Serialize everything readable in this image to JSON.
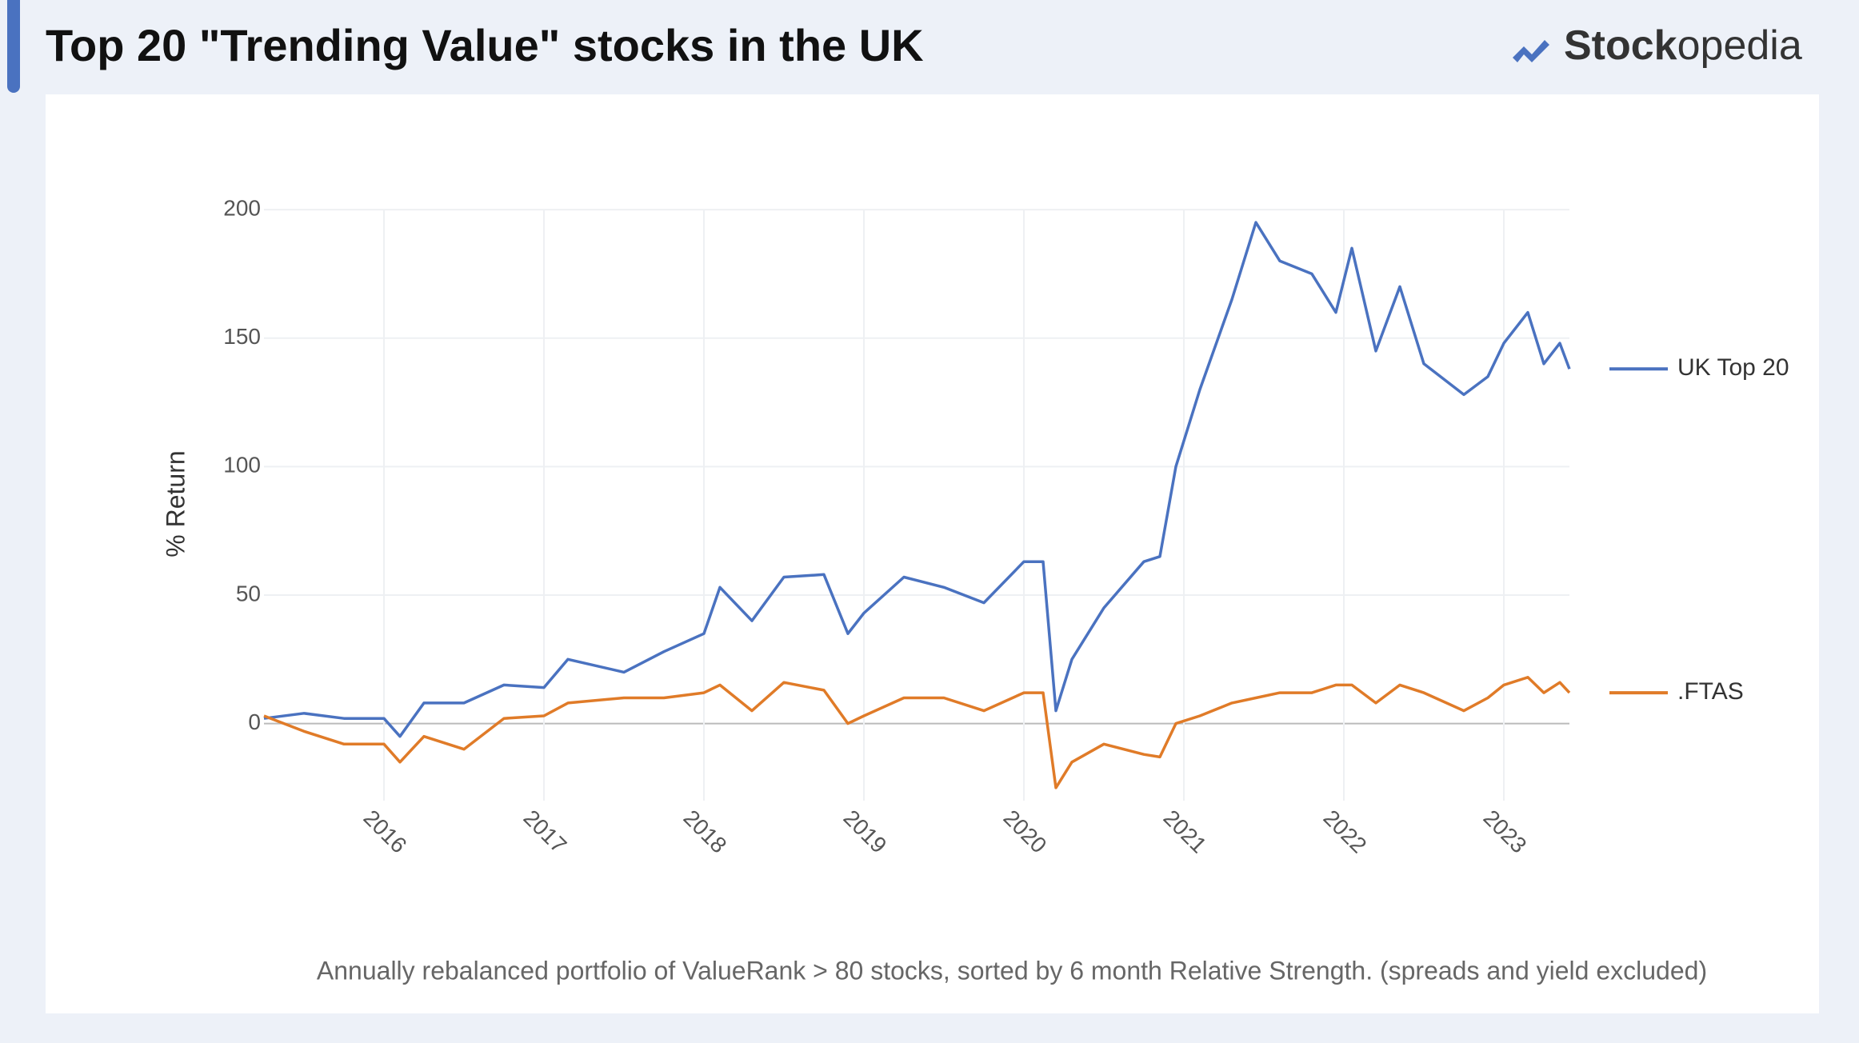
{
  "header": {
    "title": "Top 20 \"Trending Value\" stocks in the UK",
    "logo_bold": "Stock",
    "logo_light": "opedia"
  },
  "chart_data": {
    "type": "line",
    "y_label": "% Return",
    "footnote": "Annually rebalanced portfolio of ValueRank > 80 stocks, sorted by 6 month Relative Strength. (spreads and yield excluded)",
    "x": [
      2015.25,
      2015.5,
      2015.75,
      2016.0,
      2016.1,
      2016.25,
      2016.5,
      2016.75,
      2017.0,
      2017.15,
      2017.5,
      2017.75,
      2018.0,
      2018.1,
      2018.3,
      2018.5,
      2018.75,
      2018.9,
      2019.0,
      2019.25,
      2019.5,
      2019.75,
      2020.0,
      2020.12,
      2020.2,
      2020.3,
      2020.5,
      2020.75,
      2020.85,
      2020.95,
      2021.1,
      2021.3,
      2021.45,
      2021.6,
      2021.8,
      2021.95,
      2022.05,
      2022.2,
      2022.35,
      2022.5,
      2022.75,
      2022.9,
      2023.0,
      2023.15,
      2023.25,
      2023.35,
      2023.41
    ],
    "series": [
      {
        "name": "UK Top 20",
        "color": "#4a72c0",
        "values": [
          2,
          4,
          2,
          2,
          -5,
          8,
          8,
          15,
          14,
          25,
          20,
          28,
          35,
          53,
          40,
          57,
          58,
          35,
          43,
          57,
          53,
          47,
          63,
          63,
          5,
          25,
          45,
          63,
          65,
          100,
          130,
          165,
          195,
          180,
          175,
          160,
          185,
          145,
          170,
          140,
          128,
          135,
          148,
          160,
          140,
          148,
          138
        ]
      },
      {
        "name": ".FTAS",
        "color": "#e07b28",
        "values": [
          3,
          -3,
          -8,
          -8,
          -15,
          -5,
          -10,
          2,
          3,
          8,
          10,
          10,
          12,
          15,
          5,
          16,
          13,
          0,
          3,
          10,
          10,
          5,
          12,
          12,
          -25,
          -15,
          -8,
          -12,
          -13,
          0,
          3,
          8,
          10,
          12,
          12,
          15,
          15,
          8,
          15,
          12,
          5,
          10,
          15,
          18,
          12,
          16,
          12
        ]
      }
    ],
    "xlim": [
      2015.25,
      2023.41
    ],
    "xticks": [
      2016,
      2017,
      2018,
      2019,
      2020,
      2021,
      2022,
      2023
    ],
    "ylim": [
      -30,
      205
    ],
    "yticks": [
      0,
      50,
      100,
      150,
      200
    ],
    "grid": true
  }
}
